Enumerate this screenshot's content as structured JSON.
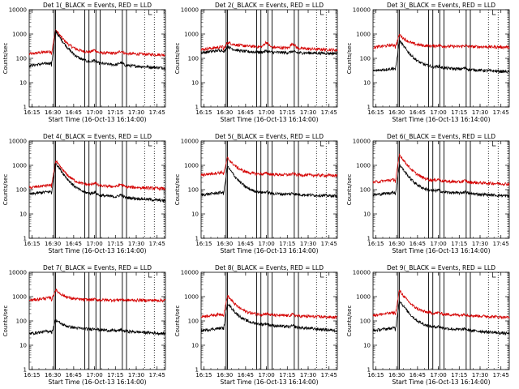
{
  "chart_data": {
    "type": "line",
    "y_scale": "log",
    "ylim": [
      1,
      10000
    ],
    "ytick_labels": [
      "1",
      "10",
      "100",
      "1000",
      "10000"
    ],
    "xlim": [
      "16:13",
      "17:51"
    ],
    "xtick_labels": [
      "16:15",
      "16:30",
      "16:45",
      "17:00",
      "17:15",
      "17:30",
      "17:45"
    ],
    "xlabel": "Start Time (16-Oct-13 16:14:00)",
    "ylabel": "Counts/sec",
    "solid_vlines": [
      "16:31",
      "16:32",
      "16:53",
      "16:56",
      "17:01",
      "17:04",
      "17:20",
      "17:23"
    ],
    "dotted_vlines": [
      "17:36",
      "17:43",
      "17:50"
    ],
    "series_colors": {
      "events": "#000000",
      "lld": "#d40000"
    },
    "panels": [
      {
        "title": "Det 1(_BLACK = Events, RED = LLD",
        "events": {
          "base": 50,
          "peak": 1300,
          "plateau": 80,
          "end": 40,
          "bump": 25
        },
        "lld": {
          "base": 150,
          "peak": 1500,
          "plateau": 190,
          "end": 140,
          "bump": 25
        }
      },
      {
        "title": "Det 2(_BLACK = Events, RED = LLD",
        "events": {
          "base": 170,
          "peak": 310,
          "plateau": 190,
          "end": 160,
          "bump": 12
        },
        "lld": {
          "base": 230,
          "peak": 460,
          "plateau": 340,
          "end": 220,
          "bump": 55
        }
      },
      {
        "title": "Det 3(_BLACK = Events, RED = LLD",
        "events": {
          "base": 30,
          "peak": 550,
          "plateau": 50,
          "end": 28,
          "bump": 12
        },
        "lld": {
          "base": 280,
          "peak": 950,
          "plateau": 330,
          "end": 290,
          "bump": 8
        }
      },
      {
        "title": "Det 4(_BLACK = Events, RED = LLD",
        "events": {
          "base": 65,
          "peak": 1300,
          "plateau": 80,
          "end": 35,
          "bump": 25
        },
        "lld": {
          "base": 120,
          "peak": 1550,
          "plateau": 170,
          "end": 110,
          "bump": 25
        }
      },
      {
        "title": "Det 5(_BLACK = Events, RED = LLD",
        "events": {
          "base": 60,
          "peak": 900,
          "plateau": 80,
          "end": 55,
          "bump": 10
        },
        "lld": {
          "base": 400,
          "peak": 2000,
          "plateau": 450,
          "end": 380,
          "bump": 10
        }
      },
      {
        "title": "Det 6(_BLACK = Events, RED = LLD",
        "events": {
          "base": 60,
          "peak": 1100,
          "plateau": 100,
          "end": 55,
          "bump": 15
        },
        "lld": {
          "base": 200,
          "peak": 2800,
          "plateau": 260,
          "end": 170,
          "bump": 15
        }
      },
      {
        "title": "Det 7(_BLACK = Events, RED = LLD",
        "events": {
          "base": 30,
          "peak": 110,
          "plateau": 55,
          "end": 30,
          "bump": 10
        },
        "lld": {
          "base": 700,
          "peak": 1900,
          "plateau": 750,
          "end": 700,
          "bump": 5
        }
      },
      {
        "title": "Det 8(_BLACK = Events, RED = LLD",
        "events": {
          "base": 40,
          "peak": 550,
          "plateau": 90,
          "end": 40,
          "bump": 12
        },
        "lld": {
          "base": 150,
          "peak": 1100,
          "plateau": 200,
          "end": 140,
          "bump": 12
        }
      },
      {
        "title": "Det 9(_BLACK = Events, RED = LLD",
        "events": {
          "base": 40,
          "peak": 700,
          "plateau": 70,
          "end": 30,
          "bump": 10
        },
        "lld": {
          "base": 170,
          "peak": 1800,
          "plateau": 230,
          "end": 140,
          "bump": 10
        }
      }
    ]
  }
}
